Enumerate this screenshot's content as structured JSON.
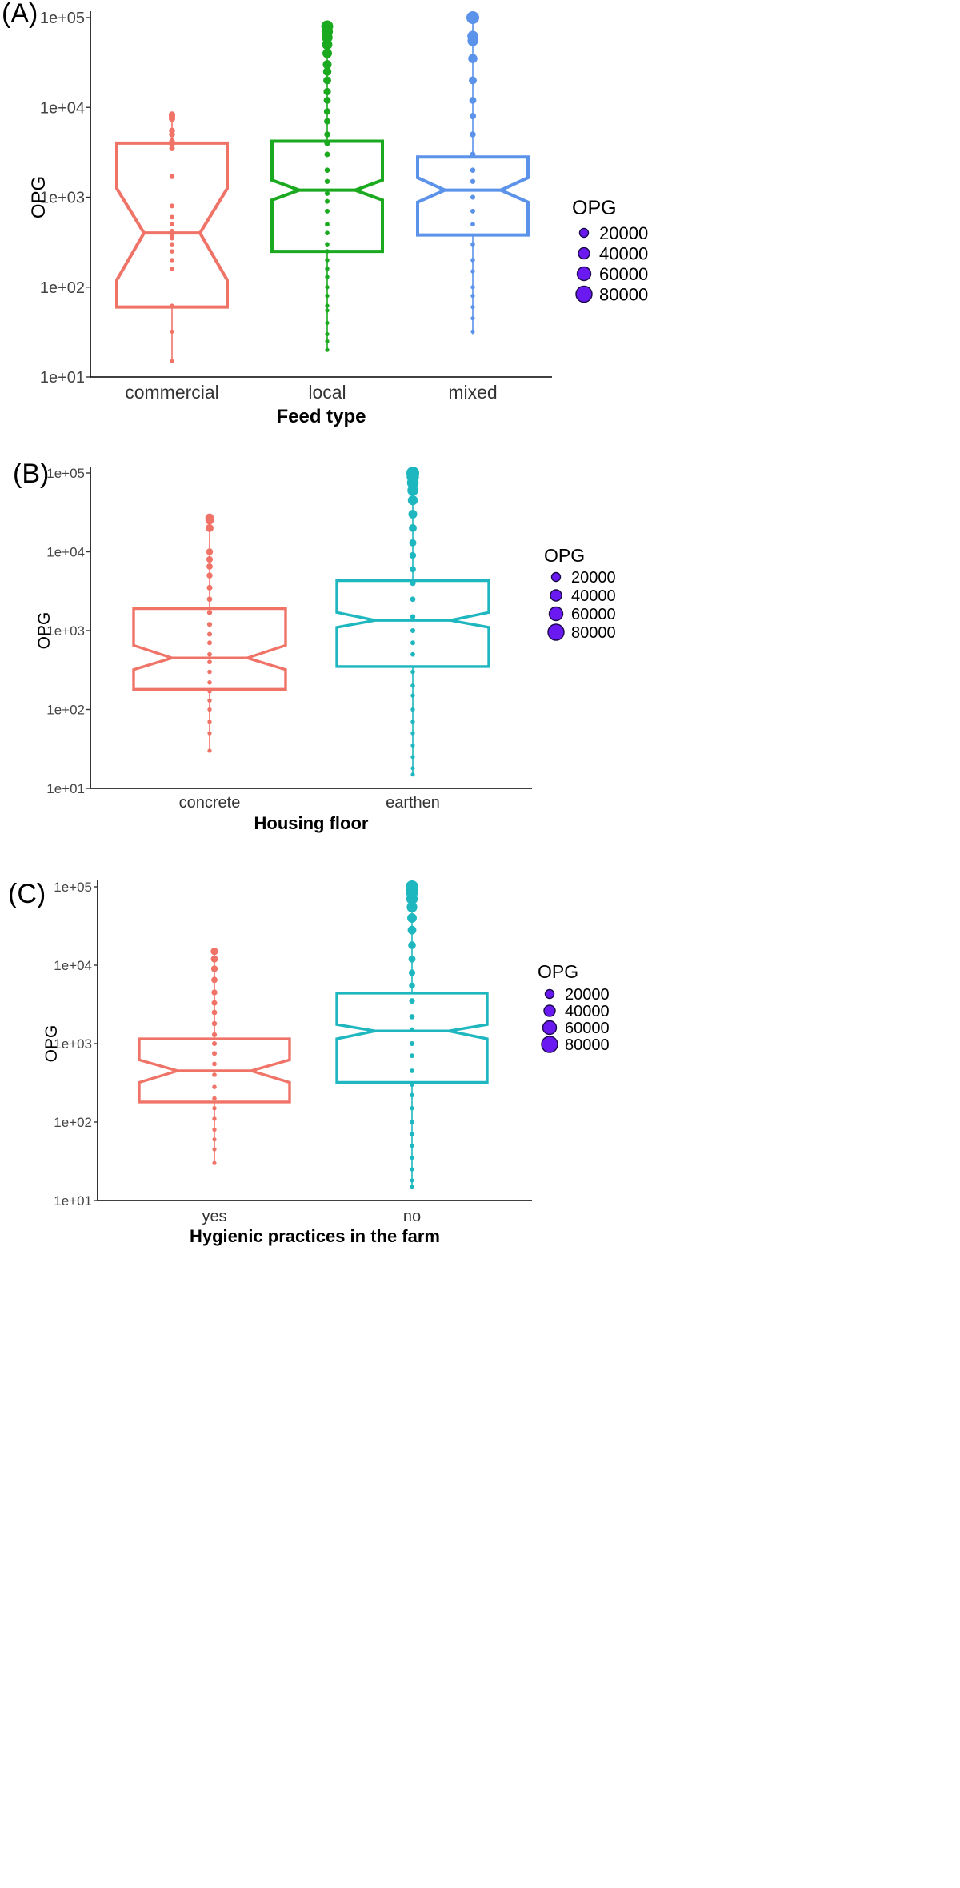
{
  "legend_color": "#6a1af0",
  "chart_data": [
    {
      "type": "boxplot",
      "panel_label": "(A)",
      "xlabel": "Feed type",
      "ylabel": "OPG",
      "yscale": "log10",
      "ylim": [
        10,
        100000
      ],
      "yticks": [
        {
          "value": 10,
          "label": "1e+01"
        },
        {
          "value": 100,
          "label": "1e+02"
        },
        {
          "value": 1000,
          "label": "1e+03"
        },
        {
          "value": 10000,
          "label": "1e+04"
        },
        {
          "value": 100000,
          "label": "1e+05"
        }
      ],
      "categories": [
        "commercial",
        "local",
        "mixed"
      ],
      "colors": [
        "#f07368",
        "#1aa91f",
        "#5b92ea"
      ],
      "boxes": [
        {
          "category": "commercial",
          "q1": 60,
          "median": 400,
          "q3": 4000,
          "notch_low": 120,
          "notch_high": 1250,
          "whisker_low": 15,
          "whisker_high": 8300
        },
        {
          "category": "local",
          "q1": 250,
          "median": 1200,
          "q3": 4200,
          "notch_low": 930,
          "notch_high": 1550,
          "whisker_low": 20,
          "whisker_high": 80000
        },
        {
          "category": "mixed",
          "q1": 380,
          "median": 1200,
          "q3": 2800,
          "notch_low": 880,
          "notch_high": 1650,
          "whisker_low": 30,
          "whisker_high": 100000
        }
      ],
      "points": [
        [
          15,
          32,
          62,
          160,
          200,
          250,
          300,
          350,
          380,
          420,
          500,
          600,
          800,
          1700,
          3500,
          3900,
          4200,
          5000,
          5500,
          7500,
          8000,
          8300
        ],
        [
          20,
          25,
          30,
          40,
          55,
          62,
          80,
          100,
          130,
          160,
          200,
          250,
          300,
          400,
          500,
          700,
          900,
          1100,
          1500,
          2000,
          3000,
          4000,
          5000,
          7000,
          9000,
          12000,
          15000,
          20000,
          25000,
          30000,
          40000,
          50000,
          60000,
          70000,
          80000
        ],
        [
          32,
          45,
          60,
          80,
          100,
          150,
          200,
          300,
          500,
          700,
          1000,
          1500,
          2000,
          3000,
          5000,
          8000,
          12000,
          20000,
          35000,
          55000,
          62000,
          100000
        ]
      ],
      "legend": {
        "title": "OPG",
        "entries": [
          "20000",
          "40000",
          "60000",
          "80000"
        ]
      }
    },
    {
      "type": "boxplot",
      "panel_label": "(B)",
      "xlabel": "Housing floor",
      "ylabel": "OPG",
      "yscale": "log10",
      "ylim": [
        10,
        100000
      ],
      "yticks": [
        {
          "value": 10,
          "label": "1e+01"
        },
        {
          "value": 100,
          "label": "1e+02"
        },
        {
          "value": 1000,
          "label": "1e+03"
        },
        {
          "value": 10000,
          "label": "1e+04"
        },
        {
          "value": 100000,
          "label": "1e+05"
        }
      ],
      "categories": [
        "concrete",
        "earthen"
      ],
      "colors": [
        "#f07368",
        "#1fb7bf"
      ],
      "boxes": [
        {
          "category": "concrete",
          "q1": 180,
          "median": 450,
          "q3": 1900,
          "notch_low": 320,
          "notch_high": 650,
          "whisker_low": 30,
          "whisker_high": 27000
        },
        {
          "category": "earthen",
          "q1": 350,
          "median": 1350,
          "q3": 4300,
          "notch_low": 1100,
          "notch_high": 1700,
          "whisker_low": 15,
          "whisker_high": 100000
        }
      ],
      "points": [
        [
          30,
          50,
          70,
          100,
          130,
          170,
          220,
          300,
          400,
          500,
          700,
          900,
          1200,
          1700,
          2500,
          3500,
          5000,
          6500,
          8000,
          10000,
          20000,
          25000,
          27000
        ],
        [
          15,
          18,
          25,
          35,
          50,
          70,
          100,
          150,
          200,
          300,
          500,
          700,
          1000,
          1500,
          2500,
          4000,
          6000,
          9000,
          13000,
          20000,
          30000,
          45000,
          60000,
          75000,
          90000,
          100000
        ]
      ],
      "legend": {
        "title": "OPG",
        "entries": [
          "20000",
          "40000",
          "60000",
          "80000"
        ]
      }
    },
    {
      "type": "boxplot",
      "panel_label": "(C)",
      "xlabel": "Hygienic practices in the farm",
      "ylabel": "OPG",
      "yscale": "log10",
      "ylim": [
        10,
        100000
      ],
      "yticks": [
        {
          "value": 10,
          "label": "1e+01"
        },
        {
          "value": 100,
          "label": "1e+02"
        },
        {
          "value": 1000,
          "label": "1e+03"
        },
        {
          "value": 10000,
          "label": "1e+04"
        },
        {
          "value": 100000,
          "label": "1e+05"
        }
      ],
      "categories": [
        "yes",
        "no"
      ],
      "colors": [
        "#f07368",
        "#1fb7bf"
      ],
      "boxes": [
        {
          "category": "yes",
          "q1": 180,
          "median": 450,
          "q3": 1150,
          "notch_low": 320,
          "notch_high": 620,
          "whisker_low": 30,
          "whisker_high": 15000
        },
        {
          "category": "no",
          "q1": 320,
          "median": 1450,
          "q3": 4400,
          "notch_low": 1150,
          "notch_high": 1750,
          "whisker_low": 15,
          "whisker_high": 100000
        }
      ],
      "points": [
        [
          30,
          45,
          60,
          80,
          110,
          150,
          200,
          280,
          400,
          550,
          750,
          1000,
          1300,
          1800,
          2500,
          3300,
          4500,
          6500,
          9000,
          12000,
          15000
        ],
        [
          15,
          18,
          25,
          35,
          50,
          70,
          100,
          150,
          220,
          300,
          450,
          700,
          1000,
          1500,
          2200,
          3500,
          5500,
          8000,
          12000,
          18000,
          28000,
          40000,
          55000,
          70000,
          85000,
          100000
        ]
      ],
      "legend": {
        "title": "OPG",
        "entries": [
          "20000",
          "40000",
          "60000",
          "80000"
        ]
      }
    }
  ]
}
